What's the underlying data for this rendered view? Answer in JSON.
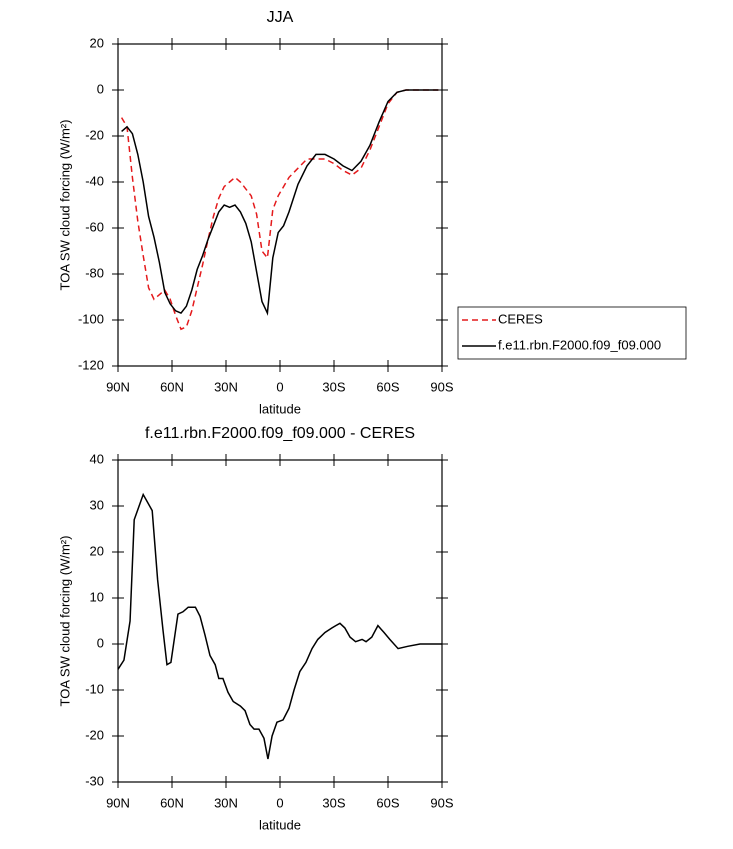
{
  "chart_data": [
    {
      "type": "line",
      "title": "JJA",
      "x_label": "latitude",
      "y_label": "TOA SW cloud forcing (W/m²)",
      "x": [
        88,
        85,
        82,
        79,
        76,
        73,
        70,
        67,
        64,
        61,
        58,
        55,
        52,
        49,
        46,
        43,
        40,
        37,
        34,
        31,
        28,
        25,
        22,
        19,
        16,
        13,
        10,
        7,
        4,
        1,
        -2,
        -5,
        -10,
        -15,
        -20,
        -25,
        -30,
        -35,
        -40,
        -45,
        -50,
        -55,
        -60,
        -65,
        -70,
        -75,
        -80,
        -85,
        -88
      ],
      "series": [
        {
          "name": "CERES",
          "color": "#e41a1c",
          "dashed": true,
          "values": [
            -12,
            -16,
            -38,
            -57,
            -72,
            -86,
            -91,
            -89,
            -87,
            -91,
            -98,
            -104,
            -103,
            -96,
            -86,
            -76,
            -65,
            -55,
            -47,
            -42,
            -40,
            -38,
            -40,
            -43,
            -46,
            -54,
            -70,
            -73,
            -52,
            -46,
            -42,
            -38,
            -34,
            -30,
            -30,
            -30,
            -32,
            -35,
            -37,
            -34,
            -26,
            -16,
            -6,
            -1,
            0,
            0,
            0,
            0,
            0
          ]
        },
        {
          "name": "f.e11.rbn.F2000.f09_f09.000",
          "color": "#000000",
          "dashed": false,
          "values": [
            -18,
            -16,
            -19,
            -28,
            -40,
            -55,
            -64,
            -75,
            -88,
            -93,
            -96,
            -97,
            -94,
            -87,
            -78,
            -72,
            -65,
            -59,
            -53,
            -50,
            -51,
            -50,
            -53,
            -58,
            -66,
            -79,
            -92,
            -97,
            -73,
            -62,
            -59,
            -53,
            -41,
            -33,
            -28,
            -28,
            -30,
            -33,
            -35,
            -31,
            -24,
            -14,
            -5,
            -1,
            0,
            0,
            0,
            0,
            0
          ]
        }
      ],
      "xlim": [
        90,
        -90
      ],
      "xticks": [
        {
          "value": 90,
          "label": "90N"
        },
        {
          "value": 60,
          "label": "60N"
        },
        {
          "value": 30,
          "label": "30N"
        },
        0,
        {
          "value": -30,
          "label": "30S"
        },
        {
          "value": -60,
          "label": "60S"
        },
        {
          "value": -90,
          "label": "90S"
        }
      ],
      "ylim": [
        -120,
        20
      ],
      "yticks": [
        -120,
        -100,
        -80,
        -60,
        -40,
        -20,
        0,
        20
      ],
      "legend": "right"
    },
    {
      "type": "line",
      "title": "f.e11.rbn.F2000.f09_f09.000 - CERES",
      "x_label": "latitude",
      "y_label": "TOA SW cloud forcing (W/m²)",
      "x": [
        90,
        86.7,
        83.3,
        81,
        76,
        71,
        68,
        65,
        62.8,
        60.6,
        56.7,
        53.9,
        51,
        47,
        44.4,
        41.7,
        38.9,
        36,
        34,
        31.7,
        28.9,
        26,
        22,
        19.4,
        16.7,
        14.4,
        11.7,
        8.9,
        6.7,
        4.4,
        1.7,
        -1.7,
        -5,
        -7.8,
        -11,
        -14.4,
        -17.8,
        -21,
        -25,
        -28.9,
        -31,
        -33.3,
        -36,
        -38.9,
        -42,
        -45.6,
        -47.8,
        -51,
        -54.4,
        -57.8,
        -61,
        -65.6,
        -71,
        -77.8,
        -90
      ],
      "series": [
        {
          "name": "f.e11.rbn.F2000.f09_f09.000 - CERES",
          "color": "#000000",
          "dashed": false,
          "values": [
            -5.5,
            -3.5,
            5,
            27,
            32.5,
            29,
            14,
            3,
            -4.5,
            -4,
            6.5,
            7,
            8,
            8,
            6,
            2,
            -2.5,
            -4.5,
            -7.5,
            -7.5,
            -10.5,
            -12.5,
            -13.5,
            -14.5,
            -17.5,
            -18.5,
            -18.5,
            -20.5,
            -25,
            -20,
            -17,
            -16.5,
            -14,
            -10,
            -6,
            -4,
            -1,
            1,
            2.5,
            3.5,
            4,
            4.5,
            3.5,
            1.5,
            0.5,
            1,
            0.5,
            1.5,
            4,
            2.5,
            1,
            -1,
            -0.5,
            0,
            0
          ]
        }
      ],
      "xlim": [
        90,
        -90
      ],
      "xticks": [
        {
          "value": 90,
          "label": "90N"
        },
        {
          "value": 60,
          "label": "60N"
        },
        {
          "value": 30,
          "label": "30N"
        },
        0,
        {
          "value": -30,
          "label": "30S"
        },
        {
          "value": -60,
          "label": "60S"
        },
        {
          "value": -90,
          "label": "90S"
        }
      ],
      "ylim": [
        -30,
        40
      ],
      "yticks": [
        -30,
        -20,
        -10,
        0,
        10,
        20,
        30,
        40
      ]
    }
  ]
}
